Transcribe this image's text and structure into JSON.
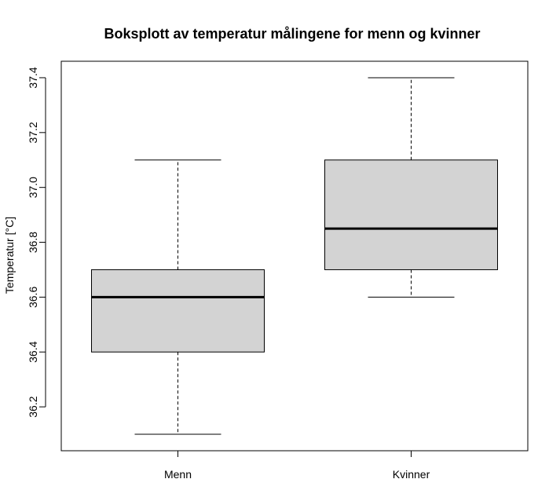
{
  "chart_data": {
    "type": "boxplot",
    "title": "Boksplott av temperatur målingene for menn og kvinner",
    "xlabel": "",
    "ylabel": "Temperatur [°C]",
    "ylim": [
      36.04,
      37.46
    ],
    "yticks": [
      "36.2",
      "36.4",
      "36.6",
      "36.8",
      "37.0",
      "37.2",
      "37.4"
    ],
    "grid": false,
    "categories": [
      "Menn",
      "Kvinner"
    ],
    "boxes": [
      {
        "label": "Menn",
        "min": 36.1,
        "q1": 36.4,
        "median": 36.6,
        "q3": 36.7,
        "max": 37.1
      },
      {
        "label": "Kvinner",
        "min": 36.6,
        "q1": 36.7,
        "median": 36.85,
        "q3": 37.1,
        "max": 37.4
      }
    ],
    "box_fill": "#d3d3d3",
    "line_color": "#000000"
  }
}
